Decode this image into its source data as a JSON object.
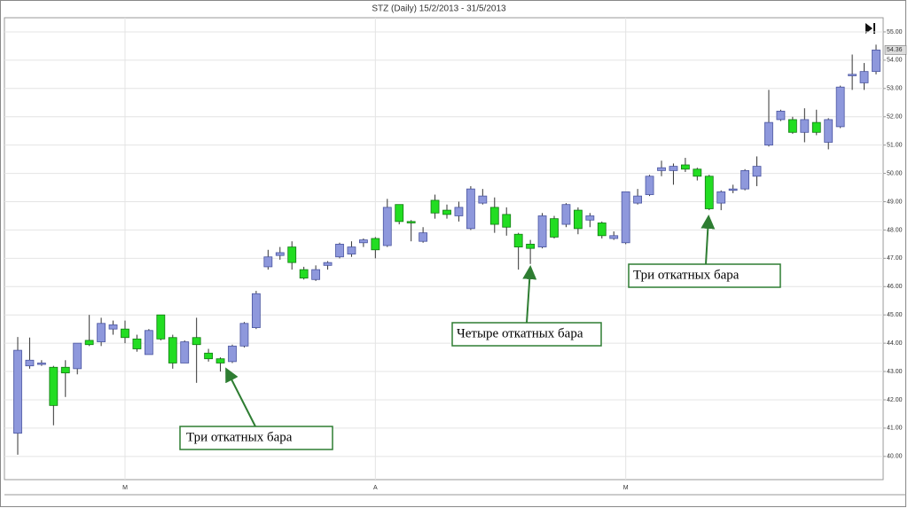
{
  "chart_data": {
    "type": "candlestick",
    "title": "STZ (Daily)  15/2/2013 - 31/5/2013",
    "categories": [
      null,
      null,
      null,
      null,
      null,
      null,
      null,
      null,
      null,
      "M",
      null,
      null,
      null,
      null,
      null,
      null,
      null,
      null,
      null,
      null,
      null,
      null,
      null,
      null,
      null,
      null,
      null,
      null,
      null,
      null,
      "A",
      null,
      null,
      null,
      null,
      null,
      null,
      null,
      null,
      null,
      null,
      null,
      null,
      null,
      null,
      null,
      null,
      null,
      null,
      null,
      null,
      "M",
      null,
      null,
      null,
      null,
      null,
      null,
      null,
      null,
      null,
      null,
      null,
      null,
      null,
      null,
      null,
      null,
      null,
      null,
      null,
      null,
      null
    ],
    "series": [
      {
        "up_color": "#8e98dc",
        "down_color": "#22dd22",
        "open": [
          40.82,
          43.2,
          43.25,
          43.15,
          43.15,
          43.1,
          44.1,
          44.05,
          44.5,
          44.5,
          44.15,
          43.6,
          45.0,
          44.2,
          43.3,
          44.2,
          43.65,
          43.45,
          43.35,
          43.9,
          44.55,
          46.7,
          47.1,
          47.4,
          46.6,
          46.25,
          46.75,
          47.05,
          47.15,
          47.55,
          47.7,
          47.45,
          48.9,
          48.3,
          47.6,
          49.05,
          48.7,
          48.5,
          48.05,
          48.95,
          48.8,
          48.55,
          47.85,
          47.5,
          47.4,
          48.4,
          48.2,
          48.7,
          48.35,
          48.25,
          47.7,
          47.55,
          48.95,
          49.25,
          50.1,
          50.1,
          50.3,
          50.15,
          49.9,
          48.95,
          49.4,
          49.45,
          49.9,
          51.0,
          51.9,
          51.9,
          51.45,
          51.8,
          51.1,
          51.65,
          53.45,
          53.2,
          53.6
        ],
        "high": [
          44.22,
          44.2,
          43.4,
          43.2,
          43.4,
          44.0,
          45.0,
          44.9,
          44.8,
          44.8,
          44.3,
          44.5,
          45.0,
          44.3,
          44.1,
          44.9,
          43.8,
          43.5,
          43.95,
          44.75,
          45.85,
          47.3,
          47.4,
          47.6,
          46.7,
          46.75,
          46.9,
          47.55,
          47.6,
          47.7,
          47.75,
          49.1,
          48.9,
          48.35,
          48.1,
          49.25,
          48.9,
          49.0,
          49.55,
          49.45,
          49.15,
          48.8,
          47.9,
          47.65,
          48.6,
          48.5,
          48.95,
          48.8,
          48.6,
          48.3,
          47.95,
          49.35,
          49.45,
          49.95,
          50.45,
          50.35,
          50.55,
          50.2,
          49.95,
          49.4,
          49.6,
          50.15,
          50.6,
          52.95,
          52.25,
          52.0,
          52.3,
          52.25,
          51.95,
          53.1,
          54.2,
          53.9,
          54.55
        ],
        "low": [
          40.06,
          43.1,
          43.2,
          41.1,
          42.1,
          42.9,
          43.9,
          43.9,
          44.3,
          44.0,
          43.7,
          43.6,
          44.1,
          43.1,
          43.3,
          42.6,
          43.35,
          43.0,
          43.3,
          43.85,
          44.5,
          46.6,
          46.95,
          46.6,
          46.25,
          46.2,
          46.6,
          47.0,
          47.05,
          47.4,
          47.0,
          47.4,
          48.2,
          47.6,
          47.55,
          48.4,
          48.4,
          48.3,
          48.0,
          48.9,
          47.9,
          47.8,
          46.6,
          46.8,
          47.35,
          47.7,
          48.1,
          47.85,
          48.1,
          47.7,
          47.65,
          47.5,
          48.9,
          49.2,
          49.9,
          49.6,
          50.05,
          49.75,
          48.7,
          48.7,
          49.3,
          49.4,
          49.55,
          50.95,
          51.85,
          51.4,
          51.1,
          51.35,
          50.85,
          51.6,
          52.95,
          52.95,
          53.5
        ],
        "close": [
          43.75,
          43.4,
          43.3,
          41.8,
          42.95,
          44.0,
          43.95,
          44.7,
          44.65,
          44.2,
          43.8,
          44.45,
          44.15,
          43.3,
          44.05,
          43.95,
          43.45,
          43.3,
          43.9,
          44.7,
          45.75,
          47.05,
          47.2,
          46.85,
          46.3,
          46.6,
          46.85,
          47.5,
          47.4,
          47.65,
          47.3,
          48.8,
          48.3,
          48.25,
          47.9,
          48.6,
          48.55,
          48.8,
          49.45,
          49.2,
          48.2,
          48.1,
          47.4,
          47.35,
          48.5,
          47.75,
          48.9,
          48.05,
          48.5,
          47.8,
          47.8,
          49.35,
          49.2,
          49.9,
          50.2,
          50.25,
          50.15,
          49.9,
          48.75,
          49.35,
          49.45,
          50.1,
          50.25,
          51.8,
          52.2,
          51.45,
          51.9,
          51.45,
          51.9,
          53.05,
          53.5,
          53.6,
          54.36
        ]
      }
    ],
    "ylim": [
      39.18,
      55.5
    ],
    "yticks": [
      {
        "value": 40,
        "label": "40.00"
      },
      {
        "value": 41,
        "label": "41.00"
      },
      {
        "value": 42,
        "label": "42.00"
      },
      {
        "value": 43,
        "label": "43.00"
      },
      {
        "value": 44,
        "label": "44.00"
      },
      {
        "value": 45,
        "label": "45.00"
      },
      {
        "value": 46,
        "label": "46.00"
      },
      {
        "value": 47,
        "label": "47.00"
      },
      {
        "value": 48,
        "label": "48.00"
      },
      {
        "value": 49,
        "label": "49.00"
      },
      {
        "value": 50,
        "label": "50.00"
      },
      {
        "value": 51,
        "label": "51.00"
      },
      {
        "value": 52,
        "label": "52.00"
      },
      {
        "value": 53,
        "label": "53.00"
      },
      {
        "value": 54,
        "label": "54.00"
      },
      {
        "value": 55,
        "label": "55.00"
      }
    ],
    "grid": true,
    "annotations": [
      "Три откатных бара",
      "Четыре откатных бара",
      "Три откатных бара"
    ]
  }
}
